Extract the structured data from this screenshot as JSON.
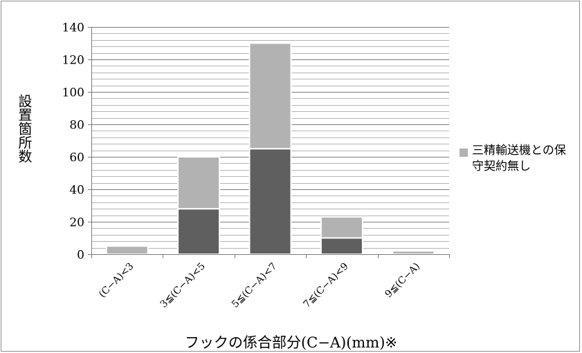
{
  "chart_data": {
    "type": "bar",
    "stacked": true,
    "categories": [
      "(C−A)<3",
      "3≦(C−A)<5",
      "5≦(C−A)<7",
      "7≦(C−A)<9",
      "9≦(C−A)"
    ],
    "series": [
      {
        "values": [
          0,
          28,
          65,
          10,
          0
        ],
        "color": "#5f5f5f"
      },
      {
        "name": "三精輸送機との保守契約無し",
        "values": [
          5,
          32,
          65,
          13,
          2
        ],
        "color": "#b2b2b2"
      }
    ],
    "ylim": [
      0,
      140
    ],
    "yticks": [
      0,
      20,
      40,
      60,
      80,
      100,
      120,
      140
    ],
    "ylabel": "設置箇所数",
    "xlabel": "フックの係合部分(C−A)(mm)※",
    "grid": true,
    "legend_position": "right"
  },
  "legend": {
    "label": "三精輸送機との保守契約無し",
    "swatch_color": "#b2b2b2"
  }
}
